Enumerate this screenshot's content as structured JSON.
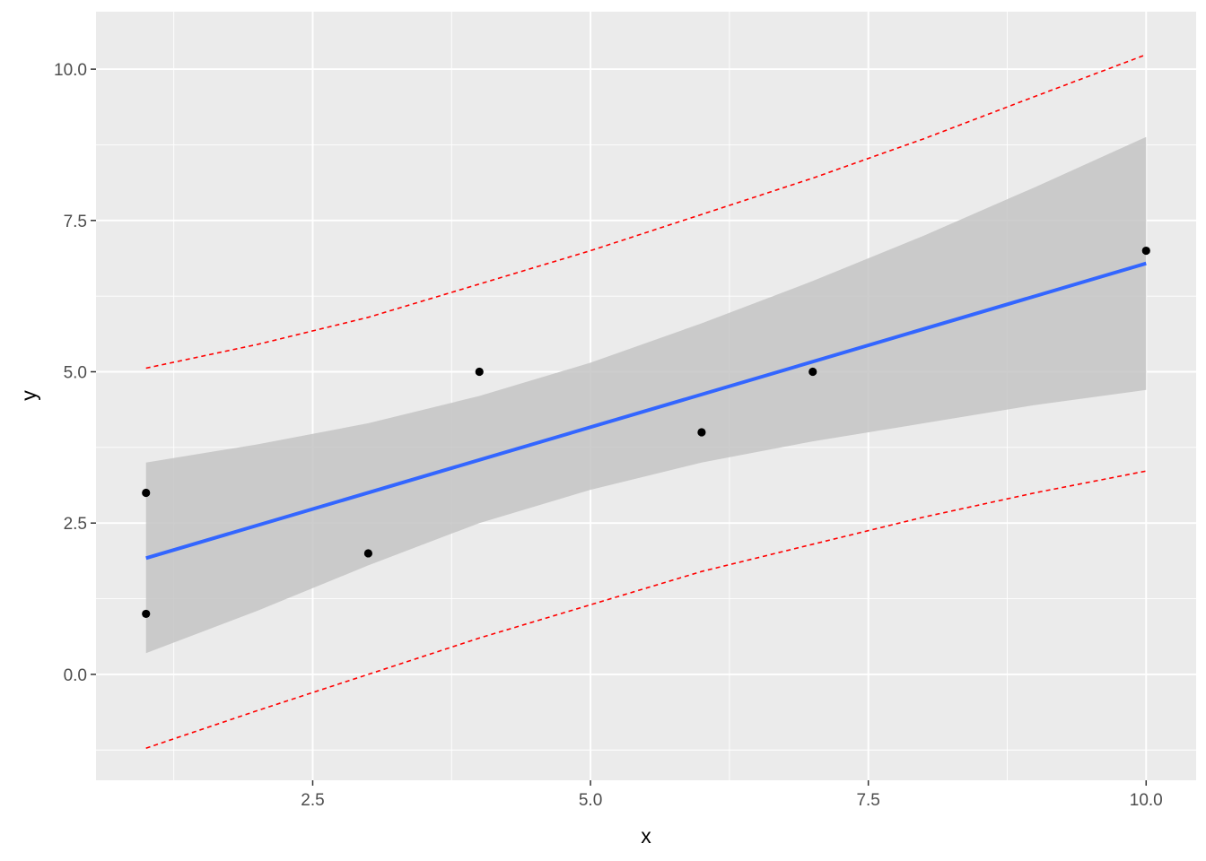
{
  "chart_data": {
    "type": "scatter",
    "title": "",
    "xlabel": "x",
    "ylabel": "y",
    "xlim": [
      0.55,
      10.45
    ],
    "ylim": [
      -1.75,
      10.95
    ],
    "x_ticks": [
      2.5,
      5.0,
      7.5,
      10.0
    ],
    "x_tick_labels": [
      "2.5",
      "5.0",
      "7.5",
      "10.0"
    ],
    "x_minor_ticks": [
      1.25,
      3.75,
      6.25,
      8.75
    ],
    "y_ticks": [
      0.0,
      2.5,
      5.0,
      7.5,
      10.0
    ],
    "y_tick_labels": [
      "0.0",
      "2.5",
      "5.0",
      "7.5",
      "10.0"
    ],
    "y_minor_ticks": [
      -1.25,
      1.25,
      3.75,
      6.25,
      8.75
    ],
    "grid": true,
    "points": [
      {
        "x": 1,
        "y": 3
      },
      {
        "x": 1,
        "y": 1
      },
      {
        "x": 3,
        "y": 2
      },
      {
        "x": 4,
        "y": 5
      },
      {
        "x": 6,
        "y": 4
      },
      {
        "x": 7,
        "y": 5
      },
      {
        "x": 10,
        "y": 7
      }
    ],
    "fit_line": {
      "x": [
        1,
        10
      ],
      "y": [
        1.92,
        6.79
      ]
    },
    "confidence_band": {
      "x": [
        1,
        2,
        3,
        4,
        5,
        6,
        7,
        8,
        9,
        10
      ],
      "lower": [
        0.35,
        1.05,
        1.8,
        2.5,
        3.05,
        3.5,
        3.85,
        4.15,
        4.45,
        4.7
      ],
      "upper": [
        3.5,
        3.8,
        4.15,
        4.6,
        5.15,
        5.8,
        6.5,
        7.25,
        8.05,
        8.88
      ]
    },
    "prediction_interval": {
      "x": [
        1,
        2,
        3,
        4,
        5,
        6,
        7,
        8,
        9,
        10
      ],
      "lower": [
        -1.22,
        -0.6,
        0.0,
        0.6,
        1.15,
        1.7,
        2.15,
        2.6,
        3.0,
        3.36
      ],
      "upper": [
        5.06,
        5.45,
        5.9,
        6.45,
        7.0,
        7.6,
        8.2,
        8.85,
        9.55,
        10.24
      ]
    },
    "colors": {
      "panel": "#ebebeb",
      "grid": "#ffffff",
      "points": "#000000",
      "fit_line": "#3366ff",
      "band": "#c4c4c4",
      "prediction_interval": "#ff0000"
    }
  }
}
